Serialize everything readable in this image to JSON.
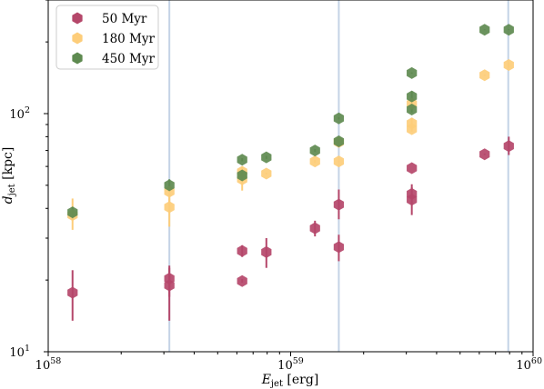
{
  "chart_data": {
    "type": "scatter",
    "title": "",
    "xlabel": "E_jet [erg]",
    "ylabel": "d_jet [kpc]",
    "xscale": "log",
    "yscale": "log",
    "xlim": [
      1e+58,
      1e+60
    ],
    "ylim": [
      10,
      300
    ],
    "legend_position": "top-left",
    "grid": false,
    "x_ticks": [
      {
        "value": 1e+58,
        "base": "10",
        "exp": "58"
      },
      {
        "value": 1e+59,
        "base": "10",
        "exp": "59"
      },
      {
        "value": 1e+60,
        "base": "10",
        "exp": "60"
      }
    ],
    "y_ticks": [
      {
        "value": 10,
        "base": "10",
        "exp": "1"
      },
      {
        "value": 100,
        "base": "10",
        "exp": "2"
      }
    ],
    "vertical_lines": [
      3.16e+58,
      1.58e+59,
      7.9e+59
    ],
    "series": [
      {
        "name": "50 Myr",
        "color": "#b5476a",
        "points": [
          {
            "x": 1.26e+58,
            "y": 17.7,
            "ylo": 13.5,
            "yhi": 22.0
          },
          {
            "x": 3.16e+58,
            "y": 20.3,
            "ylo": 17.0,
            "yhi": 23.0
          },
          {
            "x": 3.16e+58,
            "y": 19.0,
            "ylo": 13.5,
            "yhi": 22.5
          },
          {
            "x": 6.31e+58,
            "y": 26.5,
            "ylo": 25.0,
            "yhi": 28.0
          },
          {
            "x": 6.31e+58,
            "y": 19.8,
            "ylo": 19.5,
            "yhi": 20.2
          },
          {
            "x": 7.94e+58,
            "y": 26.2,
            "ylo": 22.5,
            "yhi": 30.0
          },
          {
            "x": 1.26e+59,
            "y": 33.0,
            "ylo": 30.5,
            "yhi": 35.5
          },
          {
            "x": 1.58e+59,
            "y": 41.5,
            "ylo": 36.0,
            "yhi": 48.0
          },
          {
            "x": 1.58e+59,
            "y": 27.5,
            "ylo": 24.0,
            "yhi": 31.0
          },
          {
            "x": 3.16e+59,
            "y": 59.0,
            "ylo": 59.0,
            "yhi": 59.0
          },
          {
            "x": 3.16e+59,
            "y": 46.0,
            "ylo": 42.0,
            "yhi": 50.5
          },
          {
            "x": 3.16e+59,
            "y": 43.5,
            "ylo": 37.5,
            "yhi": 49.0
          },
          {
            "x": 6.31e+59,
            "y": 67.5,
            "ylo": 67.0,
            "yhi": 68.0
          },
          {
            "x": 7.94e+59,
            "y": 73.0,
            "ylo": 67.0,
            "yhi": 80.0
          }
        ]
      },
      {
        "name": "180 Myr",
        "color": "#fdcd7a",
        "points": [
          {
            "x": 1.26e+58,
            "y": 37.5,
            "ylo": 32.5,
            "yhi": 44.0
          },
          {
            "x": 3.16e+58,
            "y": 47.0,
            "ylo": 41.0,
            "yhi": 50.0
          },
          {
            "x": 3.16e+58,
            "y": 40.5,
            "ylo": 33.5,
            "yhi": 44.0
          },
          {
            "x": 6.31e+58,
            "y": 57.0,
            "ylo": 52.0,
            "yhi": 60.0
          },
          {
            "x": 6.31e+58,
            "y": 53.0,
            "ylo": 47.5,
            "yhi": 58.0
          },
          {
            "x": 7.94e+58,
            "y": 56.0,
            "ylo": 55.5,
            "yhi": 56.5
          },
          {
            "x": 1.26e+59,
            "y": 63.0,
            "ylo": 62.0,
            "yhi": 64.0
          },
          {
            "x": 1.58e+59,
            "y": 76.0,
            "ylo": 74.0,
            "yhi": 78.0
          },
          {
            "x": 1.58e+59,
            "y": 63.0,
            "ylo": 62.5,
            "yhi": 63.5
          },
          {
            "x": 3.16e+59,
            "y": 110.0,
            "ylo": 103.0,
            "yhi": 116.0
          },
          {
            "x": 3.16e+59,
            "y": 91.0,
            "ylo": 85.0,
            "yhi": 96.0
          },
          {
            "x": 3.16e+59,
            "y": 86.0,
            "ylo": 84.0,
            "yhi": 88.0
          },
          {
            "x": 6.31e+59,
            "y": 145.0,
            "ylo": 144.0,
            "yhi": 146.0
          },
          {
            "x": 7.94e+59,
            "y": 160.0,
            "ylo": 156.0,
            "yhi": 164.0
          }
        ]
      },
      {
        "name": "450 Myr",
        "color": "#5e8a50",
        "points": [
          {
            "x": 1.26e+58,
            "y": 38.5,
            "ylo": 36.0,
            "yhi": 40.5
          },
          {
            "x": 3.16e+58,
            "y": 50.0,
            "ylo": 47.0,
            "yhi": 53.0
          },
          {
            "x": 6.31e+58,
            "y": 64.0,
            "ylo": 63.0,
            "yhi": 65.0
          },
          {
            "x": 6.31e+58,
            "y": 55.0,
            "ylo": 52.5,
            "yhi": 57.5
          },
          {
            "x": 7.94e+58,
            "y": 65.5,
            "ylo": 64.5,
            "yhi": 66.5
          },
          {
            "x": 1.26e+59,
            "y": 70.0,
            "ylo": 69.0,
            "yhi": 71.0
          },
          {
            "x": 1.58e+59,
            "y": 95.5,
            "ylo": 94.5,
            "yhi": 96.5
          },
          {
            "x": 1.58e+59,
            "y": 76.5,
            "ylo": 73.0,
            "yhi": 80.0
          },
          {
            "x": 3.16e+59,
            "y": 148.0,
            "ylo": 147.0,
            "yhi": 149.0
          },
          {
            "x": 3.16e+59,
            "y": 118.0,
            "ylo": 111.0,
            "yhi": 124.0
          },
          {
            "x": 3.16e+59,
            "y": 104.0,
            "ylo": 101.0,
            "yhi": 107.0
          },
          {
            "x": 6.31e+59,
            "y": 225.0,
            "ylo": 224.0,
            "yhi": 226.0
          },
          {
            "x": 7.94e+59,
            "y": 225.0,
            "ylo": 224.0,
            "yhi": 226.0
          }
        ]
      }
    ]
  }
}
